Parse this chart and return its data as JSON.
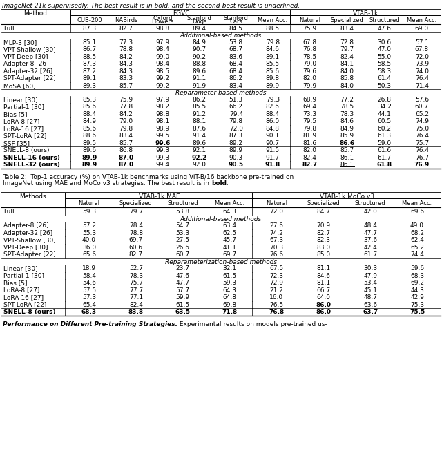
{
  "top_text": "ImageNet 21k supervisedly. The best result is in bold, and the second-best result is underlined.",
  "table1": {
    "sub_cols": [
      "CUB-200",
      "NABirds",
      "Oxford\nFlowers",
      "Stanford\nDogs",
      "Stanford\nCars",
      "Mean Acc.",
      "Natural",
      "Specialized",
      "Structured",
      "Mean Acc."
    ],
    "rows": [
      {
        "method": "Full",
        "full_row": true,
        "values": [
          "87.3",
          "82.7",
          "98.8",
          "89.4",
          "84.5",
          "88.5",
          "75.9",
          "83.4",
          "47.6",
          "69.0"
        ]
      },
      {
        "section": "Additional-based methods"
      },
      {
        "method": "MLP-3 [30]",
        "values": [
          "85.1",
          "77.3",
          "97.9",
          "84.9",
          "53.8",
          "79.8",
          "67.8",
          "72.8",
          "30.6",
          "57.1"
        ]
      },
      {
        "method": "VPT-Shallow [30]",
        "values": [
          "86.7",
          "78.8",
          "98.4",
          "90.7",
          "68.7",
          "84.6",
          "76.8",
          "79.7",
          "47.0",
          "67.8"
        ]
      },
      {
        "method": "VPT-Deep [30]",
        "values": [
          "88.5",
          "84.2",
          "99.0",
          "90.2",
          "83.6",
          "89.1",
          "78.5",
          "82.4",
          "55.0",
          "72.0"
        ]
      },
      {
        "method": "Adapter-8 [26]",
        "values": [
          "87.3",
          "84.3",
          "98.4",
          "88.8",
          "68.4",
          "85.5",
          "79.0",
          "84.1",
          "58.5",
          "73.9"
        ]
      },
      {
        "method": "Adapter-32 [26]",
        "values": [
          "87.2",
          "84.3",
          "98.5",
          "89.6",
          "68.4",
          "85.6",
          "79.6",
          "84.0",
          "58.3",
          "74.0"
        ]
      },
      {
        "method": "SPT-Adapter [22]",
        "values": [
          "89.1",
          "83.3",
          "99.2",
          "91.1",
          "86.2",
          "89.8",
          "82.0",
          "85.8",
          "61.4",
          "76.4"
        ]
      },
      {
        "method": "MoSA [60]",
        "values": [
          "89.3",
          "85.7",
          "99.2",
          "91.9",
          "83.4",
          "89.9",
          "79.9",
          "84.0",
          "50.3",
          "71.4"
        ]
      },
      {
        "section": "Reparameter-based methods"
      },
      {
        "method": "Linear [30]",
        "values": [
          "85.3",
          "75.9",
          "97.9",
          "86.2",
          "51.3",
          "79.3",
          "68.9",
          "77.2",
          "26.8",
          "57.6"
        ]
      },
      {
        "method": "Partial-1 [30]",
        "values": [
          "85.6",
          "77.8",
          "98.2",
          "85.5",
          "66.2",
          "82.6",
          "69.4",
          "78.5",
          "34.2",
          "60.7"
        ]
      },
      {
        "method": "Bias [5]",
        "values": [
          "88.4",
          "84.2",
          "98.8",
          "91.2",
          "79.4",
          "88.4",
          "73.3",
          "78.3",
          "44.1",
          "65.2"
        ]
      },
      {
        "method": "LoRA-8 [27]",
        "values": [
          "84.9",
          "79.0",
          "98.1",
          "88.1",
          "79.8",
          "86.0",
          "79.5",
          "84.6",
          "60.5",
          "74.9"
        ]
      },
      {
        "method": "LoRA-16 [27]",
        "values": [
          "85.6",
          "79.8",
          "98.9",
          "87.6",
          "72.0",
          "84.8",
          "79.8",
          "84.9",
          "60.2",
          "75.0"
        ]
      },
      {
        "method": "SPT-LoRA [22]",
        "values": [
          "88.6",
          "83.4",
          "99.5",
          "91.4",
          "87.3",
          "90.1",
          "81.9",
          "85.9",
          "61.3",
          "76.4"
        ]
      },
      {
        "method": "SSF [35]",
        "values": [
          "89.5",
          "85.7",
          "**99.6**",
          "89.6",
          "89.2",
          "90.7",
          "81.6",
          "**86.6**",
          "59.0",
          "75.7"
        ]
      },
      {
        "thin_sep": true
      },
      {
        "method": "SNELL-8 (ours)",
        "values": [
          "89.6",
          "86.8",
          "99.3",
          "92.1",
          "89.9",
          "91.5",
          "82.0",
          "85.7",
          "61.6",
          "76.4"
        ]
      },
      {
        "method": "SNELL-16 (ours)",
        "bold_method": true,
        "values": [
          "**89.9**",
          "**87.0**",
          "99.3",
          "**92.2**",
          "90.3",
          "91.7",
          "82.4",
          "__86.1__",
          "__61.7__",
          "__76.7__"
        ]
      },
      {
        "method": "SNELL-32 (ours)",
        "bold_method": true,
        "values": [
          "**89.9**",
          "**87.0**",
          "99.4",
          "92.0",
          "**90.5**",
          "**91.8**",
          "**82.7**",
          "__86.1__",
          "**61.8**",
          "**76.9**"
        ]
      }
    ]
  },
  "table1_caption_line1": "Table 2:  Top-1 accuracy (%) on VTAB-1k benchmarks using ViT-B/16 backbone pre-trained on",
  "table1_caption_line2_plain": "ImageNet using MAE and MoCo v3 strategies. The best result is in ",
  "table1_caption_line2_bold": "bold",
  "table1_caption_line2_end": ".",
  "table2": {
    "sub_cols": [
      "Natural",
      "Specialized",
      "Structured",
      "Mean Acc.",
      "Natural",
      "Specialized",
      "Structured",
      "Mean Acc."
    ],
    "rows": [
      {
        "method": "Full",
        "full_row": true,
        "values": [
          "59.3",
          "79.7",
          "53.8",
          "64.3",
          "72.0",
          "84.7",
          "42.0",
          "69.6"
        ]
      },
      {
        "section": "Additional-based methods"
      },
      {
        "method": "Adapter-8 [26]",
        "values": [
          "57.2",
          "78.4",
          "54.7",
          "63.4",
          "27.6",
          "70.9",
          "48.4",
          "49.0"
        ]
      },
      {
        "method": "Adapter-32 [26]",
        "values": [
          "55.3",
          "78.8",
          "53.3",
          "62.5",
          "74.2",
          "82.7",
          "47.7",
          "68.2"
        ]
      },
      {
        "method": "VPT-Shallow [30]",
        "values": [
          "40.0",
          "69.7",
          "27.5",
          "45.7",
          "67.3",
          "82.3",
          "37.6",
          "62.4"
        ]
      },
      {
        "method": "VPT-Deep [30]",
        "values": [
          "36.0",
          "60.6",
          "26.6",
          "41.1",
          "70.3",
          "83.0",
          "42.4",
          "65.2"
        ]
      },
      {
        "method": "SPT-Adapter [22]",
        "values": [
          "65.6",
          "82.7",
          "60.7",
          "69.7",
          "76.6",
          "85.0",
          "61.7",
          "74.4"
        ]
      },
      {
        "section": "Reparameterization-based methods"
      },
      {
        "method": "Linear [30]",
        "values": [
          "18.9",
          "52.7",
          "23.7",
          "32.1",
          "67.5",
          "81.1",
          "30.3",
          "59.6"
        ]
      },
      {
        "method": "Partial-1 [30]",
        "values": [
          "58.4",
          "78.3",
          "47.6",
          "61.5",
          "72.3",
          "84.6",
          "47.9",
          "68.3"
        ]
      },
      {
        "method": "Bias [5]",
        "values": [
          "54.6",
          "75.7",
          "47.7",
          "59.3",
          "72.9",
          "81.1",
          "53.4",
          "69.2"
        ]
      },
      {
        "method": "LoRA-8 [27]",
        "values": [
          "57.5",
          "77.7",
          "57.7",
          "64.3",
          "21.2",
          "66.7",
          "45.1",
          "44.3"
        ]
      },
      {
        "method": "LoRA-16 [27]",
        "values": [
          "57.3",
          "77.1",
          "59.9",
          "64.8",
          "16.0",
          "64.0",
          "48.7",
          "42.9"
        ]
      },
      {
        "method": "SPT-LoRA [22]",
        "values": [
          "65.4",
          "82.4",
          "61.5",
          "69.8",
          "76.5",
          "**86.0**",
          "63.6",
          "75.3"
        ]
      },
      {
        "thin_sep": true
      },
      {
        "method": "SNELL-8 (ours)",
        "bold_method": true,
        "values": [
          "**68.3**",
          "**83.8**",
          "**63.5**",
          "**71.8**",
          "**76.8**",
          "**86.0**",
          "**63.7**",
          "**75.5**"
        ]
      }
    ]
  },
  "bottom_caption_bold_italic": "Performance on Different Pre-training Strategies.",
  "bottom_caption_plain": " Experimental results on models pre-trained us-"
}
